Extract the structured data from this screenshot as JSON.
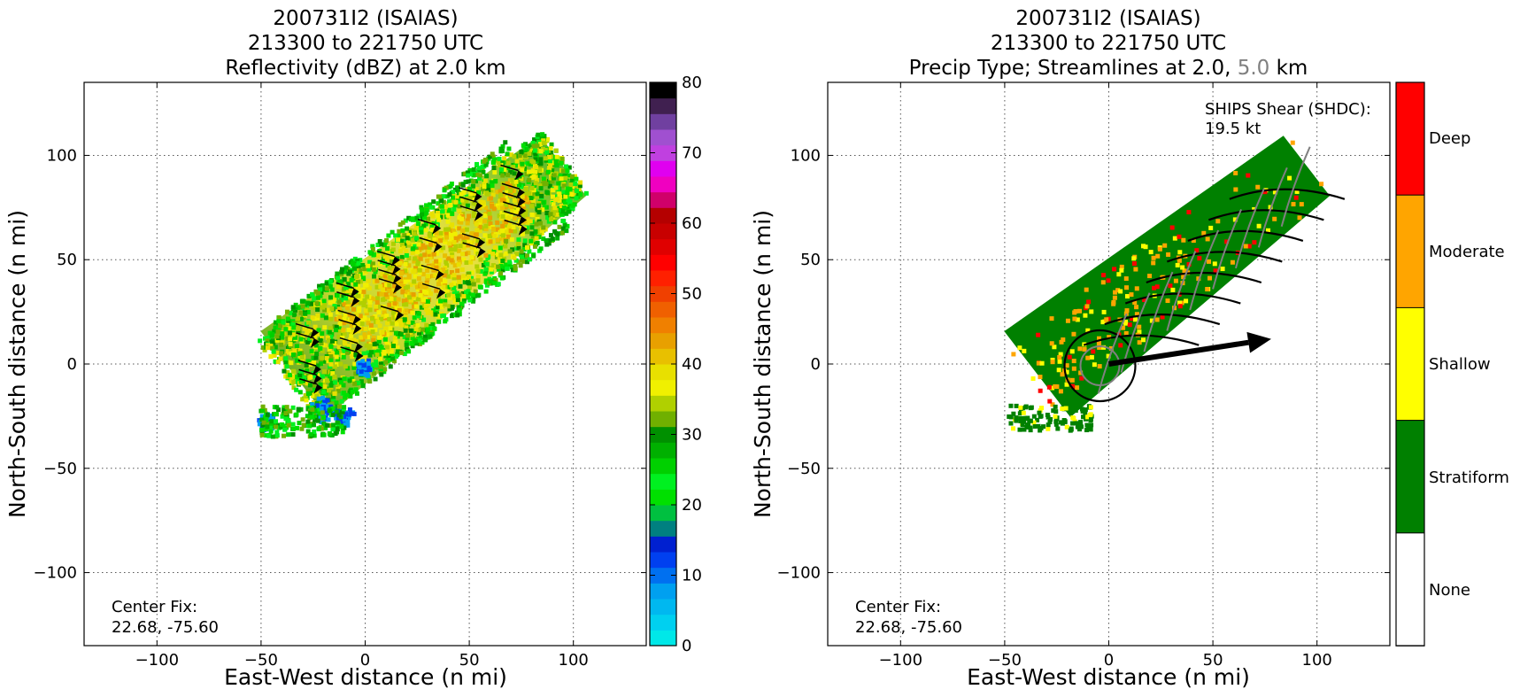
{
  "colors": {
    "stratiform": "#008000",
    "shallow": "#ffff00",
    "moderate": "#ffa500",
    "deep": "#ff0000",
    "none": "#ffffff",
    "grey_text": "#808080",
    "dbz_scale": [
      "#00e8e8",
      "#00d0f0",
      "#00b8f0",
      "#00a0f0",
      "#0070f0",
      "#0040f0",
      "#0020d0",
      "#008080",
      "#00c040",
      "#00e000",
      "#00f020",
      "#00d000",
      "#00b000",
      "#009000",
      "#70b000",
      "#b0d000",
      "#f0f000",
      "#e8e000",
      "#e8c000",
      "#e8a000",
      "#f08000",
      "#f06000",
      "#f04000",
      "#ff2000",
      "#ff0000",
      "#e00000",
      "#c80000",
      "#b40000",
      "#d0006a",
      "#f000c0",
      "#e000f0",
      "#c040e0",
      "#a050d0",
      "#7040a0",
      "#402050",
      "#000000"
    ]
  },
  "chart_data": [
    {
      "type": "heatmap",
      "title_lines": [
        "200731I2 (ISAIAS)",
        "213300 to 221750 UTC",
        "Reflectivity (dBZ) at 2.0 km"
      ],
      "xlabel": "East-West distance (n mi)",
      "ylabel": "North-South distance (n mi)",
      "xlim": [
        -135,
        135
      ],
      "ylim": [
        -135,
        135
      ],
      "xticks": [
        "−100",
        "−50",
        "0",
        "50",
        "100"
      ],
      "yticks": [
        "100",
        "50",
        "0",
        "−50",
        "−100"
      ],
      "grid": true,
      "annotation": [
        "Center Fix:",
        "22.68, -75.60"
      ],
      "colorbar": {
        "range": [
          0,
          80
        ],
        "tick_labels": [
          "80",
          "70",
          "60",
          "50",
          "40",
          "30",
          "20",
          "10",
          "0"
        ]
      },
      "echo_region": {
        "from": [
          -28,
          0
        ],
        "to": [
          95,
          95
        ],
        "half_width_nmi": 26,
        "cutoff_south_nmi": -35
      }
    },
    {
      "type": "heatmap",
      "title_line1": "200731I2 (ISAIAS)",
      "title_line2": "213300 to 221750 UTC",
      "title_line3_prefix": "Precip Type; Streamlines at 2.0,",
      "title_line3_grey": "5.0",
      "title_line3_suffix": "km",
      "xlabel": "East-West distance (n mi)",
      "ylabel": "North-South distance (n mi)",
      "xlim": [
        -135,
        135
      ],
      "ylim": [
        -135,
        135
      ],
      "xticks": [
        "−100",
        "−50",
        "0",
        "50",
        "100"
      ],
      "yticks": [
        "100",
        "50",
        "0",
        "−50",
        "−100"
      ],
      "grid": true,
      "annotation": [
        "Center Fix:",
        "22.68, -75.60"
      ],
      "shear_label": [
        "SHIPS Shear (SHDC):",
        "19.5 kt"
      ],
      "shear_vector": {
        "from": [
          0,
          0
        ],
        "to": [
          78,
          12
        ]
      },
      "legend_categories": [
        "Deep",
        "Moderate",
        "Shallow",
        "Stratiform",
        "None"
      ]
    }
  ]
}
